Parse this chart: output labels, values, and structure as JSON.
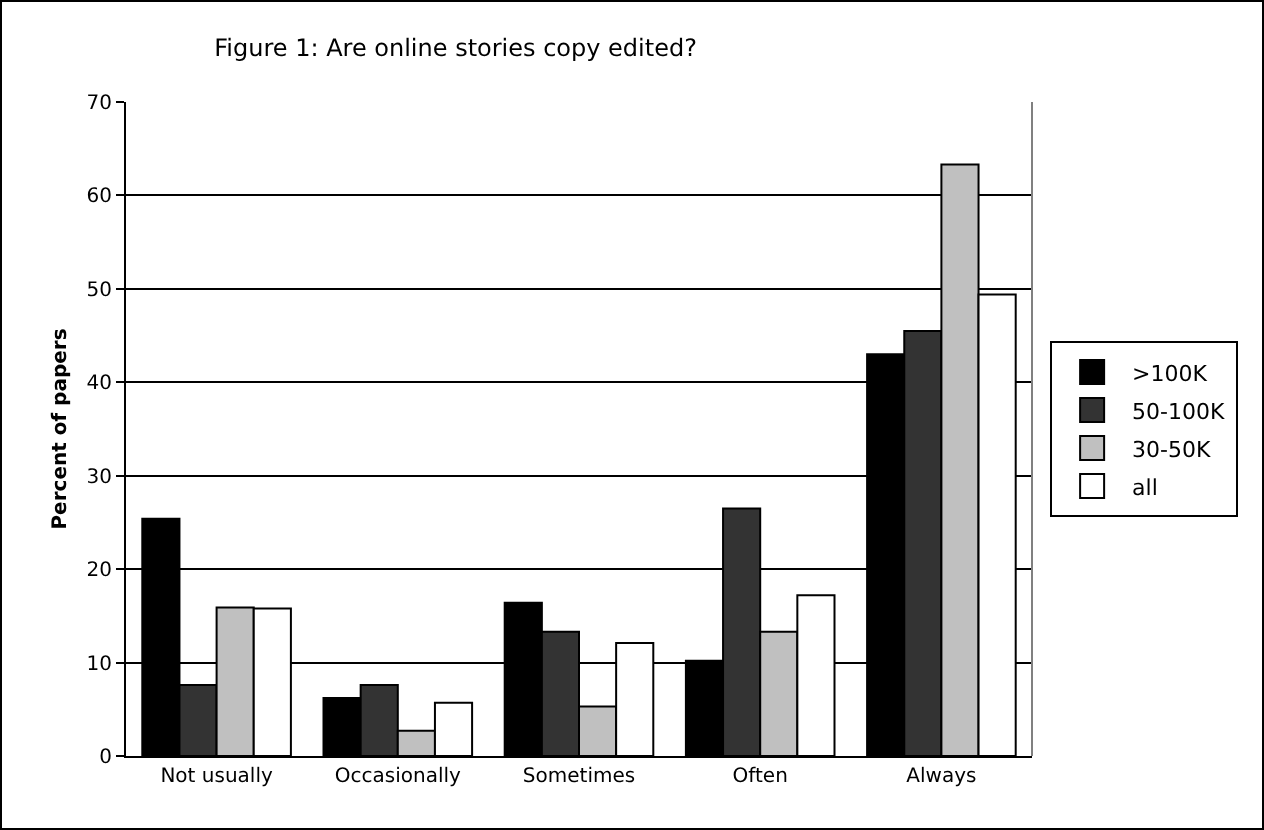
{
  "chart_data": {
    "type": "bar",
    "title": "Figure 1: Are online stories copy edited?",
    "ylabel": "Percent of papers",
    "categories": [
      "Not usually",
      "Occasionally",
      "Sometimes",
      "Often",
      "Always"
    ],
    "series": [
      {
        "name": ">100K",
        "color": "#000000",
        "values": [
          25.4,
          6.2,
          16.4,
          10.2,
          43.0
        ]
      },
      {
        "name": "50-100K",
        "color": "#333333",
        "values": [
          7.6,
          7.6,
          13.3,
          26.5,
          45.5
        ]
      },
      {
        "name": "30-50K",
        "color": "#c0c0c0",
        "values": [
          15.9,
          2.7,
          5.3,
          13.3,
          63.3
        ]
      },
      {
        "name": "all",
        "color": "#ffffff",
        "values": [
          15.8,
          5.7,
          12.1,
          17.2,
          49.4
        ]
      }
    ],
    "ylim": [
      0,
      70
    ],
    "yticks": [
      0,
      10,
      20,
      30,
      40,
      50,
      60,
      70
    ],
    "grid": "y",
    "legend": "right"
  }
}
